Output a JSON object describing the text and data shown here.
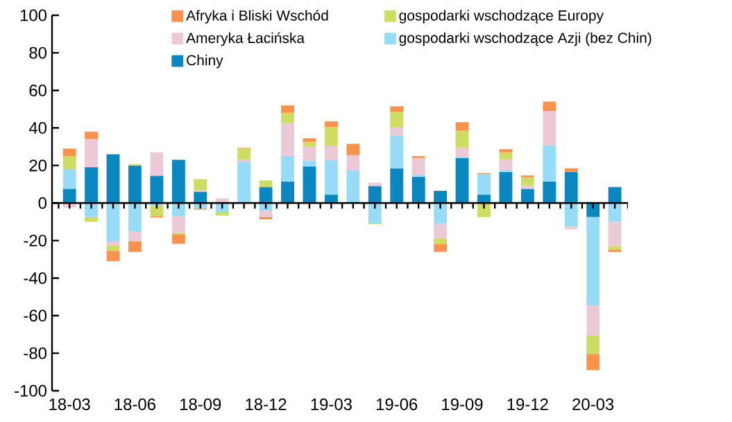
{
  "chart_data": {
    "type": "bar",
    "stacked": true,
    "legend": "top",
    "categories": [
      "18-03",
      null,
      null,
      "18-06",
      null,
      null,
      "18-09",
      null,
      null,
      "18-12",
      null,
      null,
      "19-03",
      null,
      null,
      "19-06",
      null,
      null,
      "19-09",
      null,
      null,
      "19-12",
      null,
      null,
      "20-03",
      null
    ],
    "ylim": [
      -100,
      100
    ],
    "yticks": [
      -100,
      -80,
      -60,
      -40,
      -20,
      0,
      20,
      40,
      60,
      80,
      100
    ],
    "series": [
      {
        "name": "Chiny",
        "color": "#0a86c0",
        "values": [
          7.5,
          19,
          26,
          20,
          14.5,
          23,
          6,
          0,
          0,
          8.5,
          11.5,
          19.5,
          4.5,
          0,
          9,
          18.5,
          14,
          6.5,
          24,
          4.5,
          16.5,
          7.5,
          11.5,
          16.5,
          -7.5,
          8.5
        ]
      },
      {
        "name": "gospodarki wschodzące Azji (bez Chin)",
        "color": "#97dbf7",
        "values": [
          10.5,
          -7.5,
          -20.5,
          -15,
          -1.5,
          -7,
          -3,
          -5,
          22,
          -4,
          13.5,
          3,
          18.5,
          17.5,
          -11,
          17.5,
          1,
          -11,
          0.5,
          11,
          1,
          0,
          19,
          -12.5,
          -47,
          -10
        ]
      },
      {
        "name": "Ameryka Łacińska",
        "color": "#ecc9d6",
        "values": [
          -2.5,
          15,
          -2,
          -5.5,
          12.5,
          -9,
          0.7,
          2.5,
          1.2,
          -3.5,
          17.5,
          7.5,
          7.5,
          8,
          1.8,
          4.5,
          9,
          -8,
          5,
          0,
          6,
          1.7,
          18.5,
          -1.5,
          -16,
          -13
        ]
      },
      {
        "name": "gospodarki wschodzące Europy",
        "color": "#cfdc62",
        "values": [
          7,
          -2.5,
          -3,
          0.7,
          -5.5,
          -0.7,
          6,
          -1.7,
          6,
          3.5,
          5.5,
          2.5,
          10,
          0,
          -0.3,
          8,
          0,
          -3,
          9,
          -7.5,
          3.5,
          4.5,
          0,
          0,
          -10,
          -2
        ]
      },
      {
        "name": "Afryka i Bliski Wschód",
        "color": "#fa914c",
        "values": [
          4,
          4,
          -5.5,
          -5.5,
          -0.7,
          -5,
          -0.5,
          0,
          0.3,
          -1.2,
          4,
          2,
          3,
          6,
          0,
          3,
          1,
          -4,
          4.5,
          0.5,
          1.7,
          1,
          5,
          2,
          -8.5,
          -1
        ]
      }
    ]
  }
}
